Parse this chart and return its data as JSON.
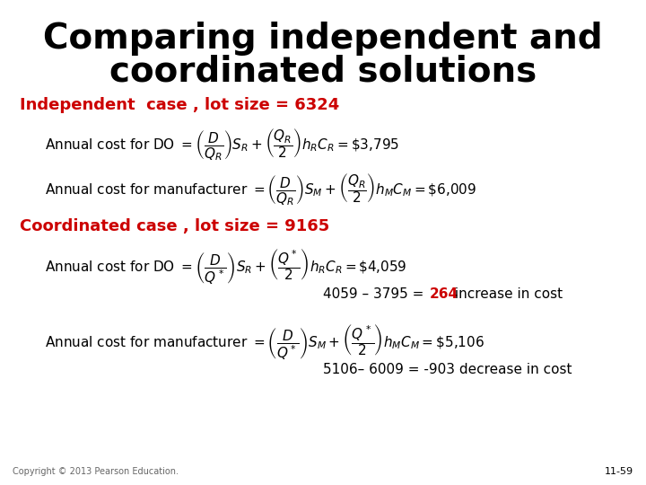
{
  "title_line1": "Comparing independent and",
  "title_line2": "coordinated solutions",
  "title_fontsize": 28,
  "title_color": "#000000",
  "bg_color": "#ffffff",
  "red_color": "#cc0000",
  "black_color": "#000000",
  "independent_label": "Independent  case , lot size = 6324",
  "coordinated_label": "Coordinated case , lot size = 9165",
  "note1_pre": "4059 – 3795 = ",
  "note1_highlight": "264",
  "note1_post": " increase in cost",
  "note2": "5106– 6009 = -903 decrease in cost",
  "copyright": "Copyright © 2013 Pearson Education.",
  "slide_num": "11-59",
  "body_fontsize": 11,
  "label_fontsize": 13
}
